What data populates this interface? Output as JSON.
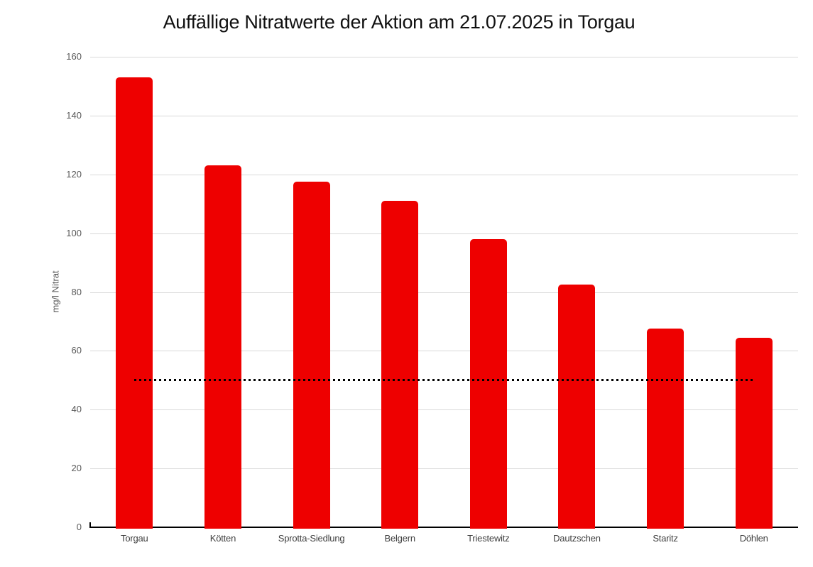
{
  "chart_data": {
    "type": "bar",
    "title": "Auffällige Nitratwerte der Aktion am 21.07.2025 in Torgau",
    "categories": [
      "Torgau",
      "Kötten",
      "Sprotta-Siedlung",
      "Belgern",
      "Triestewitz",
      "Dautzschen",
      "Staritz",
      "Döhlen"
    ],
    "values": [
      153,
      123,
      117.5,
      111,
      98,
      82.5,
      67.5,
      64.5
    ],
    "xlabel": "",
    "ylabel": "mg/l Nitrat",
    "ylim": [
      0,
      160
    ],
    "yticks": [
      0,
      20,
      40,
      60,
      80,
      100,
      120,
      140,
      160
    ],
    "grid": true,
    "legend": false,
    "reference_line": {
      "value": 50,
      "style": "dotted"
    },
    "colors": {
      "bar": "#ee0000",
      "gridline": "#d9d9d9",
      "axis_line": "#000000",
      "reference_line": "#000000",
      "y_tick_label": "#595959",
      "category_label": "#3f3f3f",
      "y_axis_title": "#595959",
      "title": "#111111",
      "background": "#ffffff"
    }
  }
}
